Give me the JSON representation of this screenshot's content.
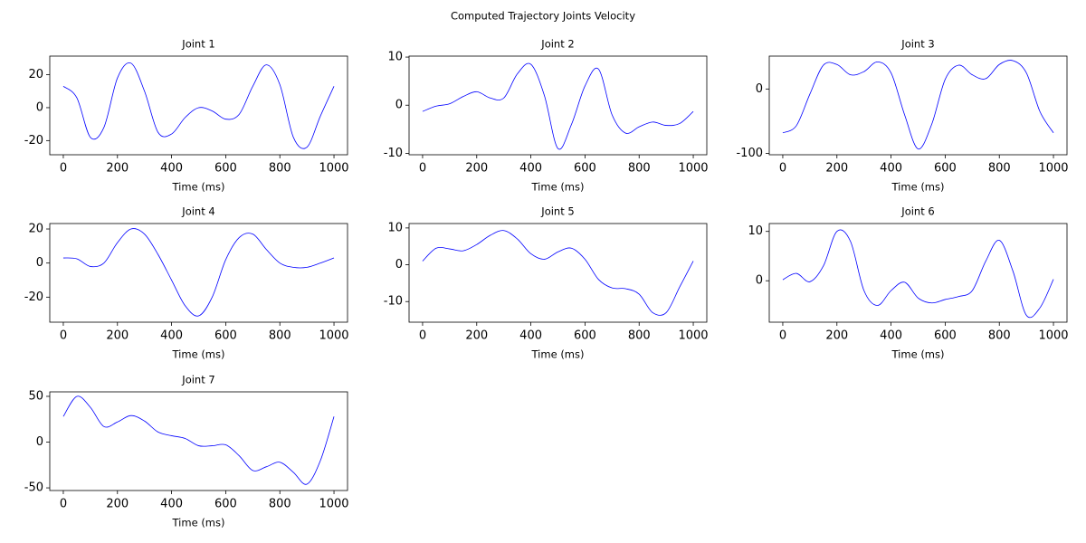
{
  "title": "Computed Trajectory Joints Velocity",
  "chart_data": [
    {
      "type": "line",
      "title": "Joint 1",
      "xlabel": "Time (ms)",
      "x": [
        0,
        50,
        100,
        150,
        200,
        250,
        300,
        350,
        400,
        450,
        500,
        550,
        600,
        650,
        700,
        750,
        800,
        850,
        900,
        950,
        1000
      ],
      "series": [
        {
          "color": "#0000ff",
          "values": [
            13,
            6,
            -18,
            -12,
            18,
            27,
            10,
            -15,
            -16,
            -6,
            0,
            -2,
            -7,
            -4,
            13,
            26,
            14,
            -18,
            -24,
            -5,
            13
          ]
        }
      ],
      "xlim": [
        -50,
        1050
      ],
      "ylim": [
        -28.6,
        31.3
      ],
      "xticks": [
        0,
        200,
        400,
        600,
        800,
        1000
      ],
      "yticks": [
        -20,
        0,
        20
      ]
    },
    {
      "type": "line",
      "title": "Joint 2",
      "xlabel": "Time (ms)",
      "x": [
        0,
        50,
        100,
        150,
        200,
        250,
        300,
        350,
        400,
        450,
        500,
        550,
        600,
        650,
        700,
        750,
        800,
        850,
        900,
        950,
        1000
      ],
      "series": [
        {
          "color": "#0000ff",
          "values": [
            -1.3,
            -0.2,
            0.3,
            1.8,
            2.8,
            1.5,
            1.5,
            6.5,
            8.5,
            2,
            -9,
            -4,
            4,
            7.5,
            -2,
            -5.8,
            -4.5,
            -3.5,
            -4.2,
            -3.8,
            -1.3
          ]
        }
      ],
      "xlim": [
        -50,
        1050
      ],
      "ylim": [
        -10.3,
        10.2
      ],
      "xticks": [
        0,
        200,
        400,
        600,
        800,
        1000
      ],
      "yticks": [
        -10,
        0,
        10
      ]
    },
    {
      "type": "line",
      "title": "Joint 3",
      "xlabel": "Time (ms)",
      "x": [
        0,
        50,
        100,
        150,
        200,
        250,
        300,
        350,
        400,
        450,
        500,
        550,
        600,
        650,
        700,
        750,
        800,
        850,
        900,
        950,
        1000
      ],
      "series": [
        {
          "color": "#0000ff",
          "values": [
            -68,
            -57,
            -8,
            37,
            38,
            22,
            27,
            42,
            25,
            -40,
            -93,
            -55,
            15,
            37,
            22,
            16,
            38,
            44,
            25,
            -35,
            -68
          ]
        }
      ],
      "xlim": [
        -50,
        1050
      ],
      "ylim": [
        -102,
        51
      ],
      "xticks": [
        0,
        200,
        400,
        600,
        800,
        1000
      ],
      "yticks": [
        -100,
        0
      ]
    },
    {
      "type": "line",
      "title": "Joint 4",
      "xlabel": "Time (ms)",
      "x": [
        0,
        50,
        100,
        150,
        200,
        250,
        300,
        350,
        400,
        450,
        500,
        550,
        600,
        650,
        700,
        750,
        800,
        850,
        900,
        950,
        1000
      ],
      "series": [
        {
          "color": "#0000ff",
          "values": [
            3,
            2.5,
            -2,
            0,
            12,
            20,
            17,
            5,
            -10,
            -25,
            -31,
            -20,
            2,
            15,
            17,
            8,
            0,
            -2.5,
            -2.5,
            0,
            3
          ]
        }
      ],
      "xlim": [
        -50,
        1050
      ],
      "ylim": [
        -34.7,
        23.2
      ],
      "xticks": [
        0,
        200,
        400,
        600,
        800,
        1000
      ],
      "yticks": [
        -20,
        0,
        20
      ]
    },
    {
      "type": "line",
      "title": "Joint 5",
      "xlabel": "Time (ms)",
      "x": [
        0,
        50,
        100,
        150,
        200,
        250,
        300,
        350,
        400,
        450,
        500,
        550,
        600,
        650,
        700,
        750,
        800,
        850,
        900,
        950,
        1000
      ],
      "series": [
        {
          "color": "#0000ff",
          "values": [
            1,
            4.5,
            4.3,
            3.8,
            5.5,
            8,
            9.3,
            7,
            3,
            1.5,
            3.5,
            4.5,
            1.5,
            -4,
            -6.3,
            -6.5,
            -8,
            -13,
            -13,
            -6,
            1
          ]
        }
      ],
      "xlim": [
        -50,
        1050
      ],
      "ylim": [
        -15.6,
        11.2
      ],
      "xticks": [
        0,
        200,
        400,
        600,
        800,
        1000
      ],
      "yticks": [
        -10,
        0,
        10
      ]
    },
    {
      "type": "line",
      "title": "Joint 6",
      "xlabel": "Time (ms)",
      "x": [
        0,
        50,
        100,
        150,
        200,
        250,
        300,
        350,
        400,
        450,
        500,
        550,
        600,
        650,
        700,
        750,
        800,
        850,
        900,
        950,
        1000
      ],
      "series": [
        {
          "color": "#0000ff",
          "values": [
            0.2,
            1.5,
            -0.2,
            3,
            10,
            8,
            -2,
            -5,
            -2,
            -0.3,
            -3.5,
            -4.5,
            -3.8,
            -3.2,
            -2,
            4,
            8.2,
            2,
            -7,
            -5.5,
            0.3
          ]
        }
      ],
      "xlim": [
        -50,
        1050
      ],
      "ylim": [
        -8.4,
        11.6
      ],
      "xticks": [
        0,
        200,
        400,
        600,
        800,
        1000
      ],
      "yticks": [
        0,
        10
      ]
    },
    {
      "type": "line",
      "title": "Joint 7",
      "xlabel": "Time (ms)",
      "x": [
        0,
        50,
        100,
        150,
        200,
        250,
        300,
        350,
        400,
        450,
        500,
        550,
        600,
        650,
        700,
        750,
        800,
        850,
        900,
        950,
        1000
      ],
      "series": [
        {
          "color": "#0000ff",
          "values": [
            28,
            50,
            38,
            17,
            22,
            29,
            23,
            11,
            7,
            4,
            -4,
            -4,
            -3,
            -15,
            -31,
            -27,
            -22,
            -33,
            -46,
            -20,
            28
          ]
        }
      ],
      "xlim": [
        -50,
        1050
      ],
      "ylim": [
        -52.9,
        54.9
      ],
      "xticks": [
        0,
        200,
        400,
        600,
        800,
        1000
      ],
      "yticks": [
        -50,
        0,
        50
      ]
    }
  ]
}
